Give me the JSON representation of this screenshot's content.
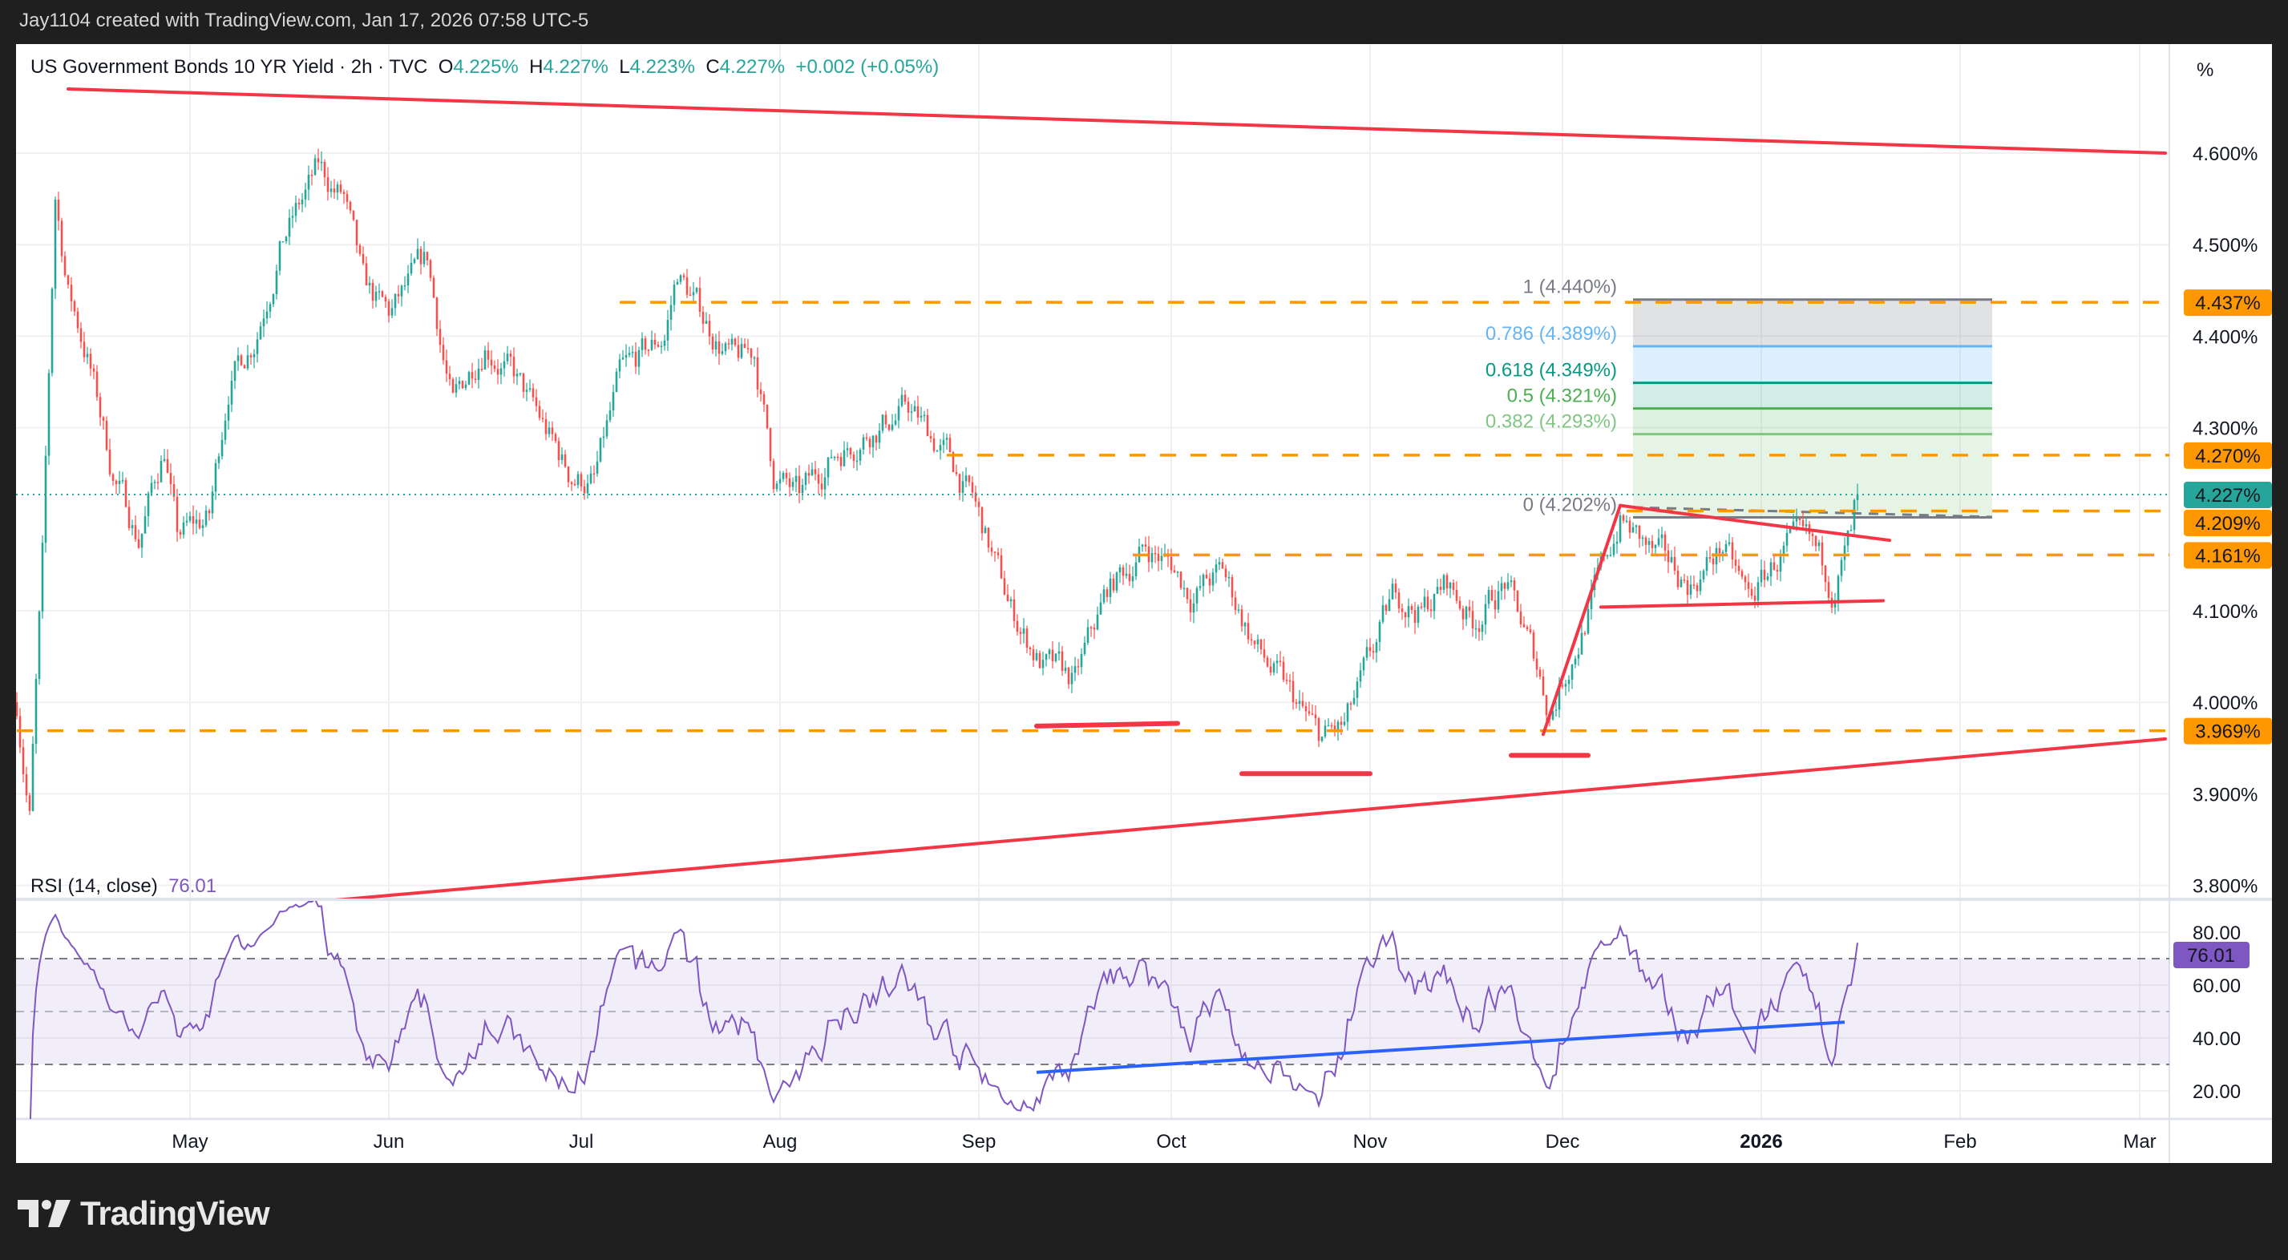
{
  "credit": "Jay1104 created with TradingView.com, Jan 17, 2026 07:58 UTC-5",
  "legend": {
    "symbol": "US Government Bonds 10 YR Yield · 2h · TVC",
    "o_label": "O",
    "o": "4.225%",
    "h_label": "H",
    "h": "4.227%",
    "l_label": "L",
    "l": "4.223%",
    "c_label": "C",
    "c": "4.227%",
    "change": "+0.002 (+0.05%)"
  },
  "axis_unit": "%",
  "rsi_legend": {
    "label": "RSI (14, close)",
    "value": "76.01"
  },
  "logo_text": "TradingView",
  "colors": {
    "up": "#26a69a",
    "down": "#ef5350",
    "orange": "#ff9800",
    "rsi": "#7e57c2",
    "trend": "#f23645",
    "rsi_trend": "#2962ff"
  },
  "chart_data": {
    "type": "candlestick",
    "title": "US Government Bonds 10 YR Yield · 2h · TVC",
    "ylabel": "%",
    "ylim": [
      3.75,
      4.65
    ],
    "price_ticks": [
      "4.600%",
      "4.500%",
      "4.400%",
      "4.300%",
      "4.100%",
      "4.000%",
      "3.900%",
      "3.800%"
    ],
    "price_tick_values": [
      4.6,
      4.5,
      4.4,
      4.3,
      4.1,
      4.0,
      3.9,
      3.8
    ],
    "time_ticks": [
      {
        "label": "May",
        "day": 0
      },
      {
        "label": "Jun",
        "day": 31
      },
      {
        "label": "Jul",
        "day": 61
      },
      {
        "label": "Aug",
        "day": 92
      },
      {
        "label": "Sep",
        "day": 123
      },
      {
        "label": "Oct",
        "day": 153
      },
      {
        "label": "Nov",
        "day": 184
      },
      {
        "label": "Dec",
        "day": 214
      },
      {
        "label": "2026",
        "day": 245,
        "bold": true
      },
      {
        "label": "Feb",
        "day": 276
      },
      {
        "label": "Mar",
        "day": 304
      }
    ],
    "approx_path_day_from_may1_vs_yield": [
      [
        -27,
        4.0
      ],
      [
        -25,
        3.88
      ],
      [
        -23,
        4.15
      ],
      [
        -21,
        4.55
      ],
      [
        -19,
        4.45
      ],
      [
        -16,
        4.38
      ],
      [
        -12,
        4.25
      ],
      [
        -8,
        4.18
      ],
      [
        -4,
        4.28
      ],
      [
        -2,
        4.18
      ],
      [
        3,
        4.2
      ],
      [
        6,
        4.35
      ],
      [
        10,
        4.4
      ],
      [
        14,
        4.5
      ],
      [
        20,
        4.58
      ],
      [
        24,
        4.55
      ],
      [
        27,
        4.45
      ],
      [
        31,
        4.42
      ],
      [
        37,
        4.48
      ],
      [
        41,
        4.32
      ],
      [
        46,
        4.4
      ],
      [
        50,
        4.36
      ],
      [
        55,
        4.3
      ],
      [
        59,
        4.25
      ],
      [
        63,
        4.24
      ],
      [
        67,
        4.35
      ],
      [
        74,
        4.4
      ],
      [
        76,
        4.47
      ],
      [
        80,
        4.42
      ],
      [
        85,
        4.37
      ],
      [
        88,
        4.38
      ],
      [
        91,
        4.25
      ],
      [
        95,
        4.22
      ],
      [
        100,
        4.27
      ],
      [
        106,
        4.3
      ],
      [
        112,
        4.32
      ],
      [
        118,
        4.27
      ],
      [
        122,
        4.22
      ],
      [
        128,
        4.1
      ],
      [
        133,
        4.04
      ],
      [
        138,
        4.02
      ],
      [
        143,
        4.12
      ],
      [
        149,
        4.17
      ],
      [
        153,
        4.15
      ],
      [
        156,
        4.12
      ],
      [
        161,
        4.14
      ],
      [
        167,
        4.05
      ],
      [
        172,
        4.0
      ],
      [
        176,
        3.96
      ],
      [
        180,
        3.97
      ],
      [
        184,
        4.04
      ],
      [
        188,
        4.12
      ],
      [
        192,
        4.1
      ],
      [
        196,
        4.13
      ],
      [
        200,
        4.09
      ],
      [
        205,
        4.13
      ],
      [
        210,
        4.04
      ],
      [
        212,
        3.99
      ],
      [
        217,
        4.08
      ],
      [
        223,
        4.2
      ],
      [
        228,
        4.16
      ],
      [
        234,
        4.13
      ],
      [
        239,
        4.17
      ],
      [
        243,
        4.11
      ],
      [
        249,
        4.17
      ],
      [
        253,
        4.16
      ],
      [
        256,
        4.13
      ],
      [
        259,
        4.18
      ],
      [
        260,
        4.227
      ]
    ],
    "horizontal_levels": [
      {
        "value": 4.437,
        "label": "4.437%",
        "from_day": 67
      },
      {
        "value": 4.27,
        "label": "4.270%",
        "from_day": 118
      },
      {
        "value": 4.209,
        "label": "4.209%",
        "from_day": 224
      },
      {
        "value": 4.161,
        "label": "4.161%",
        "from_day": 147
      },
      {
        "value": 3.969,
        "label": "3.969%",
        "from_day": -27
      }
    ],
    "last_price": {
      "value": 4.227,
      "label": "4.227%"
    },
    "fibonacci": {
      "from_day": 225,
      "to_day": 281,
      "levels": [
        {
          "ratio": "1",
          "value": 4.44,
          "label": "1 (4.440%)",
          "color": "#787b86"
        },
        {
          "ratio": "0.786",
          "value": 4.389,
          "label": "0.786 (4.389%)",
          "color": "#64b5f6"
        },
        {
          "ratio": "0.618",
          "value": 4.349,
          "label": "0.618 (4.349%)",
          "color": "#089981"
        },
        {
          "ratio": "0.5",
          "value": 4.321,
          "label": "0.5 (4.321%)",
          "color": "#4caf50"
        },
        {
          "ratio": "0.382",
          "value": 4.293,
          "label": "0.382 (4.293%)",
          "color": "#81c784"
        },
        {
          "ratio": "0",
          "value": 4.202,
          "label": "0 (4.202%)",
          "color": "#787b86"
        }
      ]
    },
    "trendlines": [
      {
        "name": "upper-channel",
        "p1": [
          -19,
          4.67
        ],
        "p2": [
          308,
          4.6
        ]
      },
      {
        "name": "lower-channel",
        "p1": [
          -16,
          3.76
        ],
        "p2": [
          308,
          3.96
        ]
      },
      {
        "name": "dec-rally",
        "p1": [
          211,
          3.965
        ],
        "p2": [
          223,
          4.215
        ]
      },
      {
        "name": "range-top",
        "p1": [
          223,
          4.215
        ],
        "p2": [
          265,
          4.177
        ]
      },
      {
        "name": "range-bottom",
        "p1": [
          220,
          4.104
        ],
        "p2": [
          264,
          4.111
        ]
      },
      {
        "name": "support-sep",
        "p1": [
          132,
          3.974
        ],
        "p2": [
          154,
          3.977
        ]
      },
      {
        "name": "support-oct",
        "p1": [
          164,
          3.922
        ],
        "p2": [
          184,
          3.922
        ]
      },
      {
        "name": "support-nov",
        "p1": [
          206,
          3.942
        ],
        "p2": [
          218,
          3.942
        ]
      }
    ],
    "rsi": {
      "period": 14,
      "last": 76.01,
      "ylim": [
        10,
        90
      ],
      "ticks": [
        "80.00",
        "60.00",
        "40.00",
        "20.00"
      ],
      "tick_values": [
        80,
        60,
        40,
        20
      ],
      "bands": [
        70,
        50,
        30
      ],
      "trendline": {
        "p1": [
          132,
          27
        ],
        "p2": [
          258,
          46
        ]
      }
    }
  }
}
